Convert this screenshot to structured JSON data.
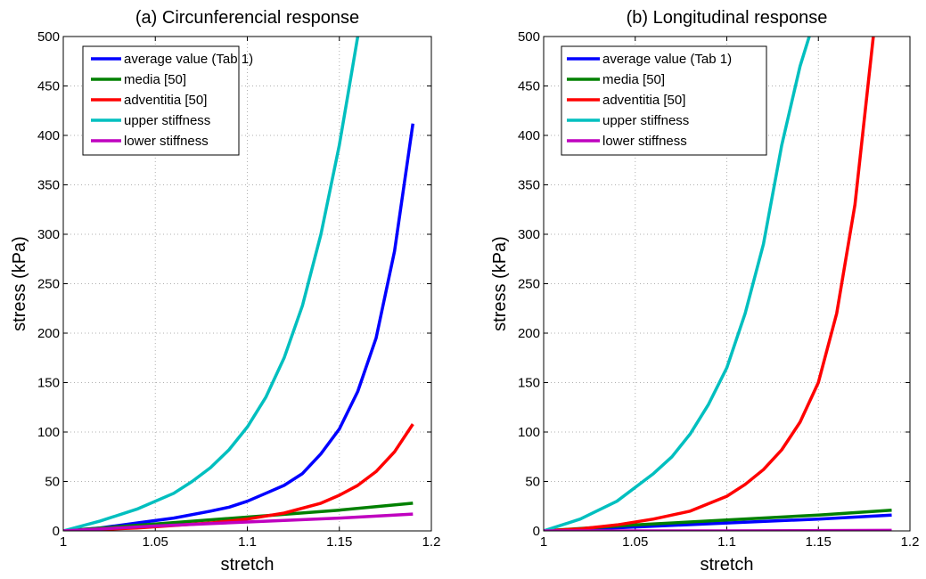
{
  "chart_data": [
    {
      "type": "line",
      "title": "(a) Circunferencial response",
      "xlabel": "stretch",
      "ylabel": "stress (kPa)",
      "xlim": [
        1,
        1.2
      ],
      "ylim": [
        0,
        500
      ],
      "xticks": [
        "1",
        "1.05",
        "1.1",
        "1.15",
        "1.2"
      ],
      "yticks": [
        "0",
        "50",
        "100",
        "150",
        "200",
        "250",
        "300",
        "350",
        "400",
        "450",
        "500"
      ],
      "grid": true,
      "legend": "top-left",
      "series": [
        {
          "name": "average value (Tab 1)",
          "color": "#0000ff",
          "x": [
            1,
            1.02,
            1.04,
            1.06,
            1.08,
            1.09,
            1.1,
            1.11,
            1.12,
            1.13,
            1.14,
            1.15,
            1.16,
            1.17,
            1.18,
            1.19
          ],
          "y": [
            0,
            3,
            8,
            13,
            20,
            24,
            30,
            38,
            46,
            58,
            78,
            103,
            141,
            195,
            283,
            412
          ]
        },
        {
          "name": "media [50]",
          "color": "#008000",
          "x": [
            1,
            1.05,
            1.1,
            1.15,
            1.19
          ],
          "y": [
            0,
            7,
            14,
            21,
            28
          ]
        },
        {
          "name": "adventitia [50]",
          "color": "#ff0000",
          "x": [
            1,
            1.04,
            1.08,
            1.1,
            1.12,
            1.14,
            1.15,
            1.16,
            1.17,
            1.18,
            1.19
          ],
          "y": [
            0,
            3,
            8,
            12,
            18,
            28,
            36,
            46,
            60,
            80,
            108
          ]
        },
        {
          "name": "upper stiffness",
          "color": "#00bfbf",
          "x": [
            1,
            1.02,
            1.04,
            1.06,
            1.07,
            1.08,
            1.09,
            1.1,
            1.11,
            1.12,
            1.13,
            1.14,
            1.15,
            1.155,
            1.16
          ],
          "y": [
            0,
            10,
            22,
            38,
            50,
            64,
            82,
            105,
            135,
            175,
            228,
            300,
            390,
            445,
            500
          ]
        },
        {
          "name": "lower stiffness",
          "color": "#bf00bf",
          "x": [
            1,
            1.05,
            1.1,
            1.15,
            1.19
          ],
          "y": [
            0,
            5,
            9,
            13,
            17
          ]
        }
      ]
    },
    {
      "type": "line",
      "title": "(b) Longitudinal response",
      "xlabel": "stretch",
      "ylabel": "stress (kPa)",
      "xlim": [
        1,
        1.2
      ],
      "ylim": [
        0,
        500
      ],
      "xticks": [
        "1",
        "1.05",
        "1.1",
        "1.15",
        "1.2"
      ],
      "yticks": [
        "0",
        "50",
        "100",
        "150",
        "200",
        "250",
        "300",
        "350",
        "400",
        "450",
        "500"
      ],
      "grid": true,
      "legend": "top-left",
      "series": [
        {
          "name": "average value (Tab 1)",
          "color": "#0000ff",
          "x": [
            1,
            1.05,
            1.1,
            1.15,
            1.19
          ],
          "y": [
            0,
            4,
            8,
            12,
            16
          ]
        },
        {
          "name": "media [50]",
          "color": "#008000",
          "x": [
            1,
            1.05,
            1.1,
            1.15,
            1.19
          ],
          "y": [
            0,
            6,
            11,
            16,
            21
          ]
        },
        {
          "name": "adventitia [50]",
          "color": "#ff0000",
          "x": [
            1,
            1.02,
            1.04,
            1.06,
            1.08,
            1.1,
            1.11,
            1.12,
            1.13,
            1.14,
            1.15,
            1.16,
            1.17,
            1.18
          ],
          "y": [
            0,
            2,
            6,
            12,
            20,
            35,
            47,
            62,
            82,
            110,
            150,
            220,
            330,
            500
          ]
        },
        {
          "name": "upper stiffness",
          "color": "#00bfbf",
          "x": [
            1,
            1.02,
            1.04,
            1.06,
            1.07,
            1.08,
            1.09,
            1.1,
            1.11,
            1.12,
            1.13,
            1.14,
            1.145
          ],
          "y": [
            0,
            12,
            30,
            58,
            75,
            98,
            128,
            165,
            220,
            290,
            390,
            470,
            500
          ]
        },
        {
          "name": "lower stiffness",
          "color": "#bf00bf",
          "x": [
            1,
            1.1,
            1.19
          ],
          "y": [
            0,
            0,
            0.5
          ]
        }
      ]
    }
  ]
}
